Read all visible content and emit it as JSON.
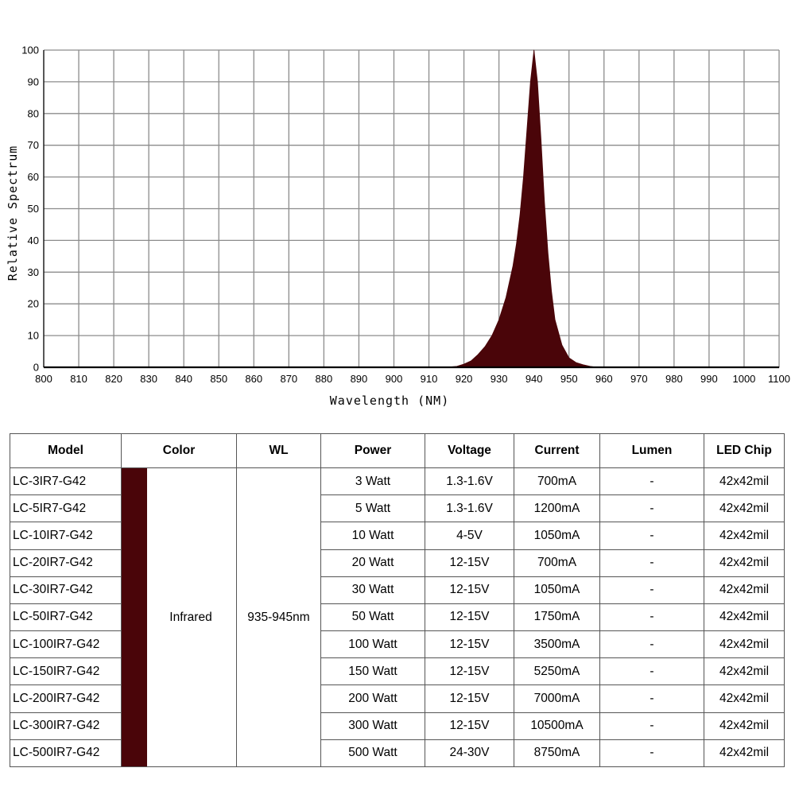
{
  "chart_data": {
    "type": "area",
    "xlabel": "Wavelength (NM)",
    "ylabel": "Relative Spectrum",
    "xlim": [
      800,
      1100
    ],
    "ylim": [
      0,
      100
    ],
    "x_ticks": [
      800,
      810,
      820,
      830,
      840,
      850,
      860,
      870,
      880,
      890,
      900,
      910,
      920,
      930,
      940,
      950,
      960,
      970,
      980,
      990,
      1000,
      1100
    ],
    "y_ticks": [
      0,
      10,
      20,
      30,
      40,
      50,
      60,
      70,
      80,
      90,
      100
    ],
    "grid": true,
    "fill_color": "#4a0509",
    "x": [
      800,
      915,
      918,
      920,
      922,
      924,
      926,
      928,
      930,
      932,
      934,
      935,
      936,
      937,
      938,
      939,
      940,
      941,
      942,
      943,
      944,
      945,
      946,
      948,
      950,
      952,
      954,
      956,
      958,
      1100
    ],
    "y": [
      0,
      0,
      0.3,
      1,
      2,
      4,
      6.5,
      10,
      15,
      22,
      32,
      39,
      48,
      60,
      75,
      90,
      100,
      90,
      72,
      52,
      36,
      24,
      15,
      7,
      3,
      1.5,
      0.8,
      0.3,
      0,
      0
    ]
  },
  "table": {
    "headers": [
      "Model",
      "Color",
      "WL",
      "Power",
      "Voltage",
      "Current",
      "Lumen",
      "LED Chip"
    ],
    "color_name": "Infrared",
    "swatch_color": "#4a0509",
    "wl": "935-945nm",
    "rows": [
      {
        "model": "LC-3IR7-G42",
        "power": "3 Watt",
        "voltage": "1.3-1.6V",
        "current": "700mA",
        "lumen": "-",
        "chip": "42x42mil"
      },
      {
        "model": "LC-5IR7-G42",
        "power": "5 Watt",
        "voltage": "1.3-1.6V",
        "current": "1200mA",
        "lumen": "-",
        "chip": "42x42mil"
      },
      {
        "model": "LC-10IR7-G42",
        "power": "10 Watt",
        "voltage": "4-5V",
        "current": "1050mA",
        "lumen": "-",
        "chip": "42x42mil"
      },
      {
        "model": "LC-20IR7-G42",
        "power": "20 Watt",
        "voltage": "12-15V",
        "current": "700mA",
        "lumen": "-",
        "chip": "42x42mil"
      },
      {
        "model": "LC-30IR7-G42",
        "power": "30 Watt",
        "voltage": "12-15V",
        "current": "1050mA",
        "lumen": "-",
        "chip": "42x42mil"
      },
      {
        "model": "LC-50IR7-G42",
        "power": "50 Watt",
        "voltage": "12-15V",
        "current": "1750mA",
        "lumen": "-",
        "chip": "42x42mil"
      },
      {
        "model": "LC-100IR7-G42",
        "power": "100 Watt",
        "voltage": "12-15V",
        "current": "3500mA",
        "lumen": "-",
        "chip": "42x42mil"
      },
      {
        "model": "LC-150IR7-G42",
        "power": "150 Watt",
        "voltage": "12-15V",
        "current": "5250mA",
        "lumen": "-",
        "chip": "42x42mil"
      },
      {
        "model": "LC-200IR7-G42",
        "power": "200 Watt",
        "voltage": "12-15V",
        "current": "7000mA",
        "lumen": "-",
        "chip": "42x42mil"
      },
      {
        "model": "LC-300IR7-G42",
        "power": "300 Watt",
        "voltage": "12-15V",
        "current": "10500mA",
        "lumen": "-",
        "chip": "42x42mil"
      },
      {
        "model": "LC-500IR7-G42",
        "power": "500 Watt",
        "voltage": "24-30V",
        "current": "8750mA",
        "lumen": "-",
        "chip": "42x42mil"
      }
    ]
  }
}
